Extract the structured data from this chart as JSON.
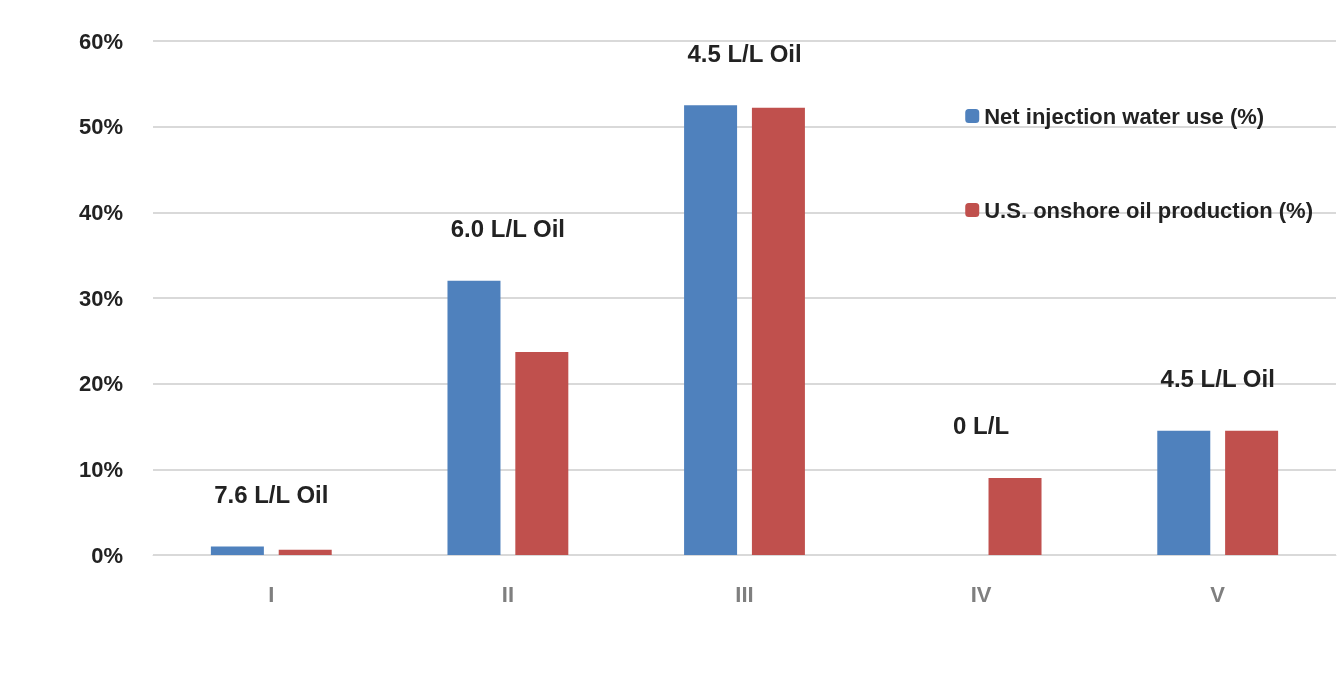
{
  "chart_data": {
    "type": "bar",
    "categories": [
      "I",
      "II",
      "III",
      "IV",
      "V"
    ],
    "series": [
      {
        "name": "Net injection water use (%)",
        "color": "#4f81bd",
        "values": [
          1,
          32,
          52.5,
          0,
          14.5
        ]
      },
      {
        "name": "U.S. onshore oil production (%)",
        "color": "#c0504d",
        "values": [
          0.6,
          23.7,
          52.2,
          9,
          14.5
        ]
      }
    ],
    "ylim": [
      0,
      60
    ],
    "yticks": [
      {
        "value": 0,
        "label": "0%"
      },
      {
        "value": 10,
        "label": "10%"
      },
      {
        "value": 20,
        "label": "20%"
      },
      {
        "value": 30,
        "label": "30%"
      },
      {
        "value": 40,
        "label": "40%"
      },
      {
        "value": 50,
        "label": "50%"
      },
      {
        "value": 60,
        "label": "60%"
      }
    ],
    "grid": "y",
    "legend": "top right",
    "annotations": [
      "7.6 L/L Oil",
      "6.0 L/L Oil",
      "4.5 L/L Oil",
      "0 L/L",
      "4.5 L/L Oil"
    ]
  }
}
